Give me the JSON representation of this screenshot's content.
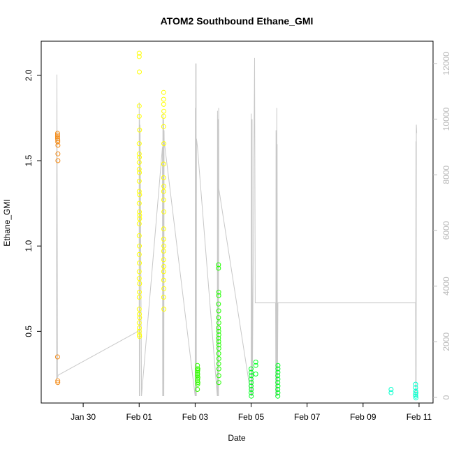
{
  "chart_data": {
    "type": "scatter",
    "title": "ATOM2 Southbound Ethane_GMI",
    "xlabel": "Date",
    "ylabel": "Ethane_GMI",
    "xlim": [
      "2017-01-28T12:00",
      "2017-02-11T12:00"
    ],
    "ylim": [
      0.08,
      2.2
    ],
    "x_ticks": [
      {
        "value": "2017-01-30T00:00",
        "label": "Jan 30"
      },
      {
        "value": "2017-02-01T00:00",
        "label": "Feb 01"
      },
      {
        "value": "2017-02-03T00:00",
        "label": "Feb 03"
      },
      {
        "value": "2017-02-05T00:00",
        "label": "Feb 05"
      },
      {
        "value": "2017-02-07T00:00",
        "label": "Feb 07"
      },
      {
        "value": "2017-02-09T00:00",
        "label": "Feb 09"
      },
      {
        "value": "2017-02-11T00:00",
        "label": "Feb 11"
      }
    ],
    "y_ticks": [
      {
        "value": 0.5,
        "label": "0.5"
      },
      {
        "value": 1.0,
        "label": "1.0"
      },
      {
        "value": 1.5,
        "label": "1.5"
      },
      {
        "value": 2.0,
        "label": "2.0"
      }
    ],
    "y2lim": [
      -200,
      12800
    ],
    "y2_ticks": [
      {
        "value": 0,
        "label": "0"
      },
      {
        "value": 2000,
        "label": "2000"
      },
      {
        "value": 4000,
        "label": "4000"
      },
      {
        "value": 6000,
        "label": "6000"
      },
      {
        "value": 8000,
        "label": "8000"
      },
      {
        "value": 10000,
        "label": "10000"
      },
      {
        "value": 12000,
        "label": "12000"
      }
    ],
    "grid": false,
    "legend": "none",
    "altitude_color": "#c8c8c8",
    "groups": [
      {
        "color": "#f58a14",
        "points": [
          [
            "2017-01-29T02:00",
            1.66
          ],
          [
            "2017-01-29T02:00",
            1.65
          ],
          [
            "2017-01-29T02:00",
            1.64
          ],
          [
            "2017-01-29T02:00",
            1.63
          ],
          [
            "2017-01-29T02:10",
            1.62
          ],
          [
            "2017-01-29T02:10",
            1.61
          ],
          [
            "2017-01-29T02:20",
            1.59
          ],
          [
            "2017-01-29T02:20",
            1.54
          ],
          [
            "2017-01-29T02:20",
            1.5
          ],
          [
            "2017-01-29T02:00",
            0.35
          ],
          [
            "2017-01-29T02:10",
            0.21
          ],
          [
            "2017-01-29T02:10",
            0.2
          ]
        ]
      },
      {
        "color": "#ffff00",
        "points": [
          [
            "2017-02-01T00:00",
            2.13
          ],
          [
            "2017-02-01T00:00",
            2.11
          ],
          [
            "2017-02-01T00:10",
            2.02
          ],
          [
            "2017-02-01T00:00",
            1.82
          ],
          [
            "2017-02-01T00:00",
            1.76
          ],
          [
            "2017-02-01T00:20",
            1.68
          ],
          [
            "2017-02-01T00:00",
            1.6
          ],
          [
            "2017-02-01T00:00",
            1.54
          ],
          [
            "2017-02-01T00:10",
            1.52
          ],
          [
            "2017-02-01T00:00",
            1.49
          ],
          [
            "2017-02-01T00:00",
            1.45
          ],
          [
            "2017-02-01T00:10",
            1.43
          ],
          [
            "2017-02-01T00:00",
            1.38
          ],
          [
            "2017-02-01T00:00",
            1.32
          ],
          [
            "2017-02-01T00:20",
            1.3
          ],
          [
            "2017-02-01T00:00",
            1.25
          ],
          [
            "2017-02-01T00:10",
            1.2
          ],
          [
            "2017-02-01T00:20",
            1.18
          ],
          [
            "2017-02-01T00:20",
            1.16
          ],
          [
            "2017-02-01T00:00",
            1.13
          ],
          [
            "2017-02-01T00:00",
            1.06
          ],
          [
            "2017-02-01T00:10",
            1.0
          ],
          [
            "2017-02-01T00:00",
            0.95
          ],
          [
            "2017-02-01T00:10",
            0.9
          ],
          [
            "2017-02-01T00:00",
            0.85
          ],
          [
            "2017-02-01T00:00",
            0.81
          ],
          [
            "2017-02-01T00:20",
            0.78
          ],
          [
            "2017-02-01T00:10",
            0.73
          ],
          [
            "2017-02-01T00:00",
            0.7
          ],
          [
            "2017-02-01T00:00",
            0.63
          ],
          [
            "2017-02-01T00:10",
            0.6
          ],
          [
            "2017-02-01T00:20",
            0.58
          ],
          [
            "2017-02-01T00:00",
            0.55
          ],
          [
            "2017-02-01T00:10",
            0.52
          ],
          [
            "2017-02-01T00:00",
            0.5
          ],
          [
            "2017-02-01T00:10",
            0.48
          ],
          [
            "2017-02-01T00:20",
            0.47
          ],
          [
            "2017-02-01T21:00",
            1.9
          ],
          [
            "2017-02-01T21:00",
            1.86
          ],
          [
            "2017-02-01T21:00",
            1.83
          ],
          [
            "2017-02-01T21:10",
            1.79
          ],
          [
            "2017-02-01T21:00",
            1.76
          ],
          [
            "2017-02-01T21:00",
            1.7
          ],
          [
            "2017-02-01T21:10",
            1.6
          ],
          [
            "2017-02-01T21:00",
            1.48
          ],
          [
            "2017-02-01T21:00",
            1.4
          ],
          [
            "2017-02-01T21:10",
            1.35
          ],
          [
            "2017-02-01T21:00",
            1.32
          ],
          [
            "2017-02-01T21:00",
            1.27
          ],
          [
            "2017-02-01T21:10",
            1.2
          ],
          [
            "2017-02-01T21:00",
            1.1
          ],
          [
            "2017-02-01T21:00",
            1.04
          ],
          [
            "2017-02-01T21:10",
            1.0
          ],
          [
            "2017-02-01T21:00",
            0.97
          ],
          [
            "2017-02-01T21:00",
            0.92
          ],
          [
            "2017-02-01T21:10",
            0.88
          ],
          [
            "2017-02-01T21:00",
            0.85
          ],
          [
            "2017-02-01T21:00",
            0.8
          ],
          [
            "2017-02-01T21:10",
            0.75
          ],
          [
            "2017-02-01T21:00",
            0.7
          ],
          [
            "2017-02-01T21:10",
            0.63
          ]
        ]
      },
      {
        "color": "#33ff00",
        "points": [
          [
            "2017-02-03T02:00",
            0.3
          ],
          [
            "2017-02-03T02:00",
            0.28
          ],
          [
            "2017-02-03T02:10",
            0.27
          ],
          [
            "2017-02-03T02:00",
            0.26
          ],
          [
            "2017-02-03T02:10",
            0.25
          ],
          [
            "2017-02-03T02:00",
            0.24
          ],
          [
            "2017-02-03T02:20",
            0.23
          ],
          [
            "2017-02-03T02:10",
            0.22
          ],
          [
            "2017-02-03T02:00",
            0.21
          ],
          [
            "2017-02-03T02:20",
            0.2
          ],
          [
            "2017-02-03T02:10",
            0.19
          ],
          [
            "2017-02-03T02:00",
            0.16
          ],
          [
            "2017-02-03T02:20",
            0.28
          ]
        ]
      },
      {
        "color": "#22ff00",
        "points": [
          [
            "2017-02-03T20:00",
            0.89
          ],
          [
            "2017-02-03T20:00",
            0.87
          ],
          [
            "2017-02-03T20:10",
            0.73
          ],
          [
            "2017-02-03T20:10",
            0.71
          ],
          [
            "2017-02-03T20:00",
            0.66
          ],
          [
            "2017-02-03T20:10",
            0.62
          ],
          [
            "2017-02-03T20:00",
            0.58
          ],
          [
            "2017-02-03T20:20",
            0.55
          ],
          [
            "2017-02-03T20:00",
            0.52
          ],
          [
            "2017-02-03T20:10",
            0.5
          ],
          [
            "2017-02-03T20:20",
            0.48
          ],
          [
            "2017-02-03T20:00",
            0.46
          ],
          [
            "2017-02-03T20:10",
            0.44
          ],
          [
            "2017-02-03T20:20",
            0.42
          ],
          [
            "2017-02-03T20:20",
            0.4
          ],
          [
            "2017-02-03T20:10",
            0.37
          ],
          [
            "2017-02-03T20:20",
            0.34
          ],
          [
            "2017-02-03T20:10",
            0.31
          ],
          [
            "2017-02-03T20:20",
            0.28
          ],
          [
            "2017-02-03T20:20",
            0.24
          ],
          [
            "2017-02-03T20:20",
            0.2
          ]
        ]
      },
      {
        "color": "#00ff22",
        "points": [
          [
            "2017-02-05T00:00",
            0.28
          ],
          [
            "2017-02-05T00:00",
            0.26
          ],
          [
            "2017-02-05T00:10",
            0.24
          ],
          [
            "2017-02-05T00:00",
            0.22
          ],
          [
            "2017-02-05T00:10",
            0.2
          ],
          [
            "2017-02-05T00:00",
            0.18
          ],
          [
            "2017-02-05T00:10",
            0.16
          ],
          [
            "2017-02-05T00:00",
            0.14
          ],
          [
            "2017-02-05T00:10",
            0.12
          ],
          [
            "2017-02-05T04:00",
            0.32
          ],
          [
            "2017-02-05T04:00",
            0.3
          ],
          [
            "2017-02-05T04:00",
            0.25
          ],
          [
            "2017-02-05T23:00",
            0.3
          ],
          [
            "2017-02-05T23:00",
            0.28
          ],
          [
            "2017-02-05T23:00",
            0.26
          ],
          [
            "2017-02-05T22:50",
            0.24
          ],
          [
            "2017-02-05T23:00",
            0.22
          ],
          [
            "2017-02-05T22:50",
            0.2
          ],
          [
            "2017-02-05T23:00",
            0.18
          ],
          [
            "2017-02-05T22:50",
            0.16
          ],
          [
            "2017-02-05T23:00",
            0.14
          ],
          [
            "2017-02-05T22:50",
            0.12
          ]
        ]
      },
      {
        "color": "#00ffcc",
        "points": [
          [
            "2017-02-10T00:00",
            0.16
          ],
          [
            "2017-02-10T00:00",
            0.14
          ],
          [
            "2017-02-10T21:00",
            0.19
          ],
          [
            "2017-02-10T21:00",
            0.17
          ],
          [
            "2017-02-10T21:10",
            0.15
          ],
          [
            "2017-02-10T21:00",
            0.13
          ],
          [
            "2017-02-10T21:10",
            0.12
          ],
          [
            "2017-02-10T21:20",
            0.11
          ],
          [
            "2017-02-10T21:20",
            0.14
          ]
        ]
      }
    ],
    "altitude": [
      [
        "2017-01-29T01:00",
        600
      ],
      [
        "2017-01-29T01:30",
        11600
      ],
      [
        "2017-01-29T02:00",
        700
      ],
      [
        "2017-01-29T02:30",
        800
      ],
      [
        "2017-02-01T00:00",
        2400
      ],
      [
        "2017-02-01T00:00",
        10600
      ],
      [
        "2017-02-01T00:10",
        50
      ],
      [
        "2017-02-01T00:20",
        10000
      ],
      [
        "2017-02-01T00:30",
        50
      ],
      [
        "2017-02-01T00:40",
        9800
      ],
      [
        "2017-02-01T00:50",
        9700
      ],
      [
        "2017-02-01T02:00",
        50
      ],
      [
        "2017-02-01T20:00",
        9000
      ],
      [
        "2017-02-01T20:10",
        50
      ],
      [
        "2017-02-01T20:20",
        10200
      ],
      [
        "2017-02-01T20:30",
        50
      ],
      [
        "2017-02-01T21:00",
        10000
      ],
      [
        "2017-02-01T21:10",
        50
      ],
      [
        "2017-02-01T21:20",
        9600
      ],
      [
        "2017-02-01T21:30",
        9200
      ],
      [
        "2017-02-03T00:00",
        50
      ],
      [
        "2017-02-03T00:10",
        10400
      ],
      [
        "2017-02-03T00:20",
        50
      ],
      [
        "2017-02-03T00:30",
        12000
      ],
      [
        "2017-02-03T00:40",
        50
      ],
      [
        "2017-02-03T00:50",
        12000
      ],
      [
        "2017-02-03T01:00",
        50
      ],
      [
        "2017-02-03T01:10",
        9300
      ],
      [
        "2017-02-03T02:00",
        9000
      ],
      [
        "2017-02-03T19:00",
        50
      ],
      [
        "2017-02-03T19:10",
        10300
      ],
      [
        "2017-02-03T19:20",
        50
      ],
      [
        "2017-02-03T19:30",
        10000
      ],
      [
        "2017-02-03T19:40",
        50
      ],
      [
        "2017-02-03T19:50",
        10000
      ],
      [
        "2017-02-03T20:00",
        50
      ],
      [
        "2017-02-03T20:10",
        10400
      ],
      [
        "2017-02-03T20:20",
        7500
      ],
      [
        "2017-02-05T00:00",
        50
      ],
      [
        "2017-02-05T00:10",
        10200
      ],
      [
        "2017-02-05T00:20",
        50
      ],
      [
        "2017-02-05T00:30",
        10000
      ],
      [
        "2017-02-05T00:40",
        50
      ],
      [
        "2017-02-05T00:50",
        10000
      ],
      [
        "2017-02-05T01:00",
        50
      ],
      [
        "2017-02-05T03:00",
        12200
      ],
      [
        "2017-02-05T03:30",
        3400
      ],
      [
        "2017-02-05T21:00",
        3400
      ],
      [
        "2017-02-05T21:10",
        50
      ],
      [
        "2017-02-05T21:20",
        9600
      ],
      [
        "2017-02-05T21:30",
        50
      ],
      [
        "2017-02-05T21:40",
        9500
      ],
      [
        "2017-02-05T21:50",
        50
      ],
      [
        "2017-02-05T22:00",
        10400
      ],
      [
        "2017-02-05T22:10",
        50
      ],
      [
        "2017-02-05T22:20",
        9100
      ],
      [
        "2017-02-05T22:30",
        50
      ],
      [
        "2017-02-05T23:00",
        3400
      ],
      [
        "2017-02-10T21:00",
        3400
      ],
      [
        "2017-02-10T21:10",
        50
      ],
      [
        "2017-02-10T21:20",
        9200
      ],
      [
        "2017-02-10T21:30",
        50
      ],
      [
        "2017-02-10T21:40",
        9800
      ],
      [
        "2017-02-10T22:00",
        9500
      ]
    ]
  }
}
